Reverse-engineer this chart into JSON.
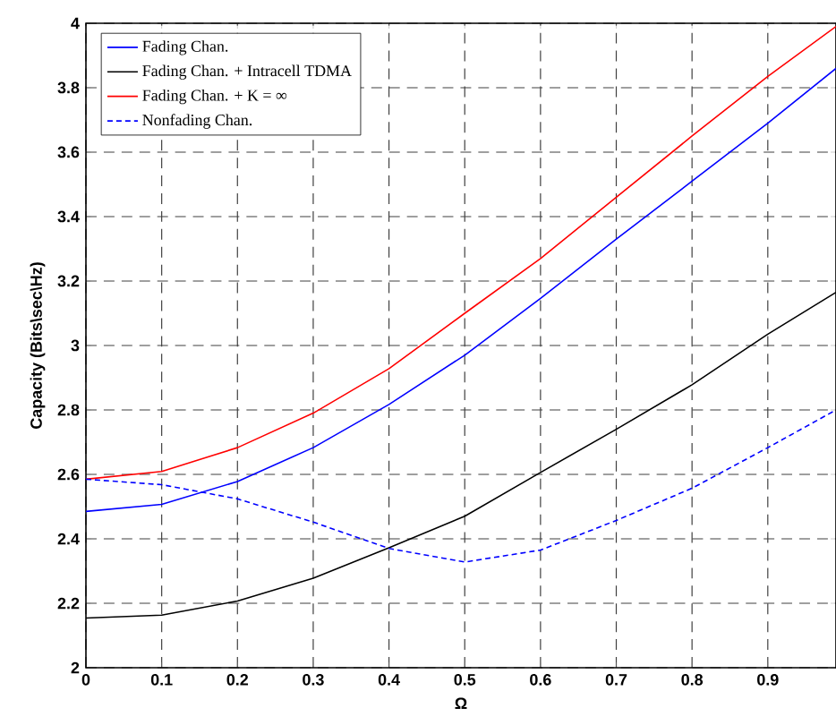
{
  "chart_data": {
    "type": "line",
    "xlabel": "Ω",
    "ylabel": "Capacity (Bits\\sec\\Hz)",
    "x": [
      0,
      0.1,
      0.2,
      0.3,
      0.4,
      0.5,
      0.6,
      0.7,
      0.8,
      0.9,
      0.99
    ],
    "series": [
      {
        "name": "Fading Chan.",
        "color": "#0000ff",
        "line_style": "solid",
        "values": [
          2.485,
          2.507,
          2.578,
          2.683,
          2.817,
          2.97,
          3.146,
          3.33,
          3.51,
          3.69,
          3.86
        ]
      },
      {
        "name": "Fading Chan. + Intracell TDMA",
        "color": "#000000",
        "line_style": "solid",
        "values": [
          2.154,
          2.163,
          2.207,
          2.278,
          2.372,
          2.47,
          2.606,
          2.74,
          2.878,
          3.035,
          3.165
        ]
      },
      {
        "name": "Fading Chan. + K = ∞",
        "color": "#ff0000",
        "line_style": "solid",
        "values": [
          2.585,
          2.609,
          2.683,
          2.79,
          2.928,
          3.1,
          3.27,
          3.46,
          3.65,
          3.835,
          3.99
        ]
      },
      {
        "name": "Nonfading Chan.",
        "color": "#0000ff",
        "line_style": "dashed",
        "values": [
          2.585,
          2.568,
          2.524,
          2.452,
          2.37,
          2.328,
          2.365,
          2.457,
          2.557,
          2.683,
          2.8
        ]
      }
    ],
    "xlim": [
      0,
      0.99
    ],
    "ylim": [
      2,
      4
    ],
    "xticks": [
      0,
      0.1,
      0.2,
      0.3,
      0.4,
      0.5,
      0.6,
      0.7,
      0.8,
      0.9
    ],
    "yticks": [
      2,
      2.2,
      2.4,
      2.6,
      2.8,
      3,
      3.2,
      3.4,
      3.6,
      3.8,
      4
    ],
    "grid": true,
    "legend": "top left",
    "marker": "none"
  }
}
